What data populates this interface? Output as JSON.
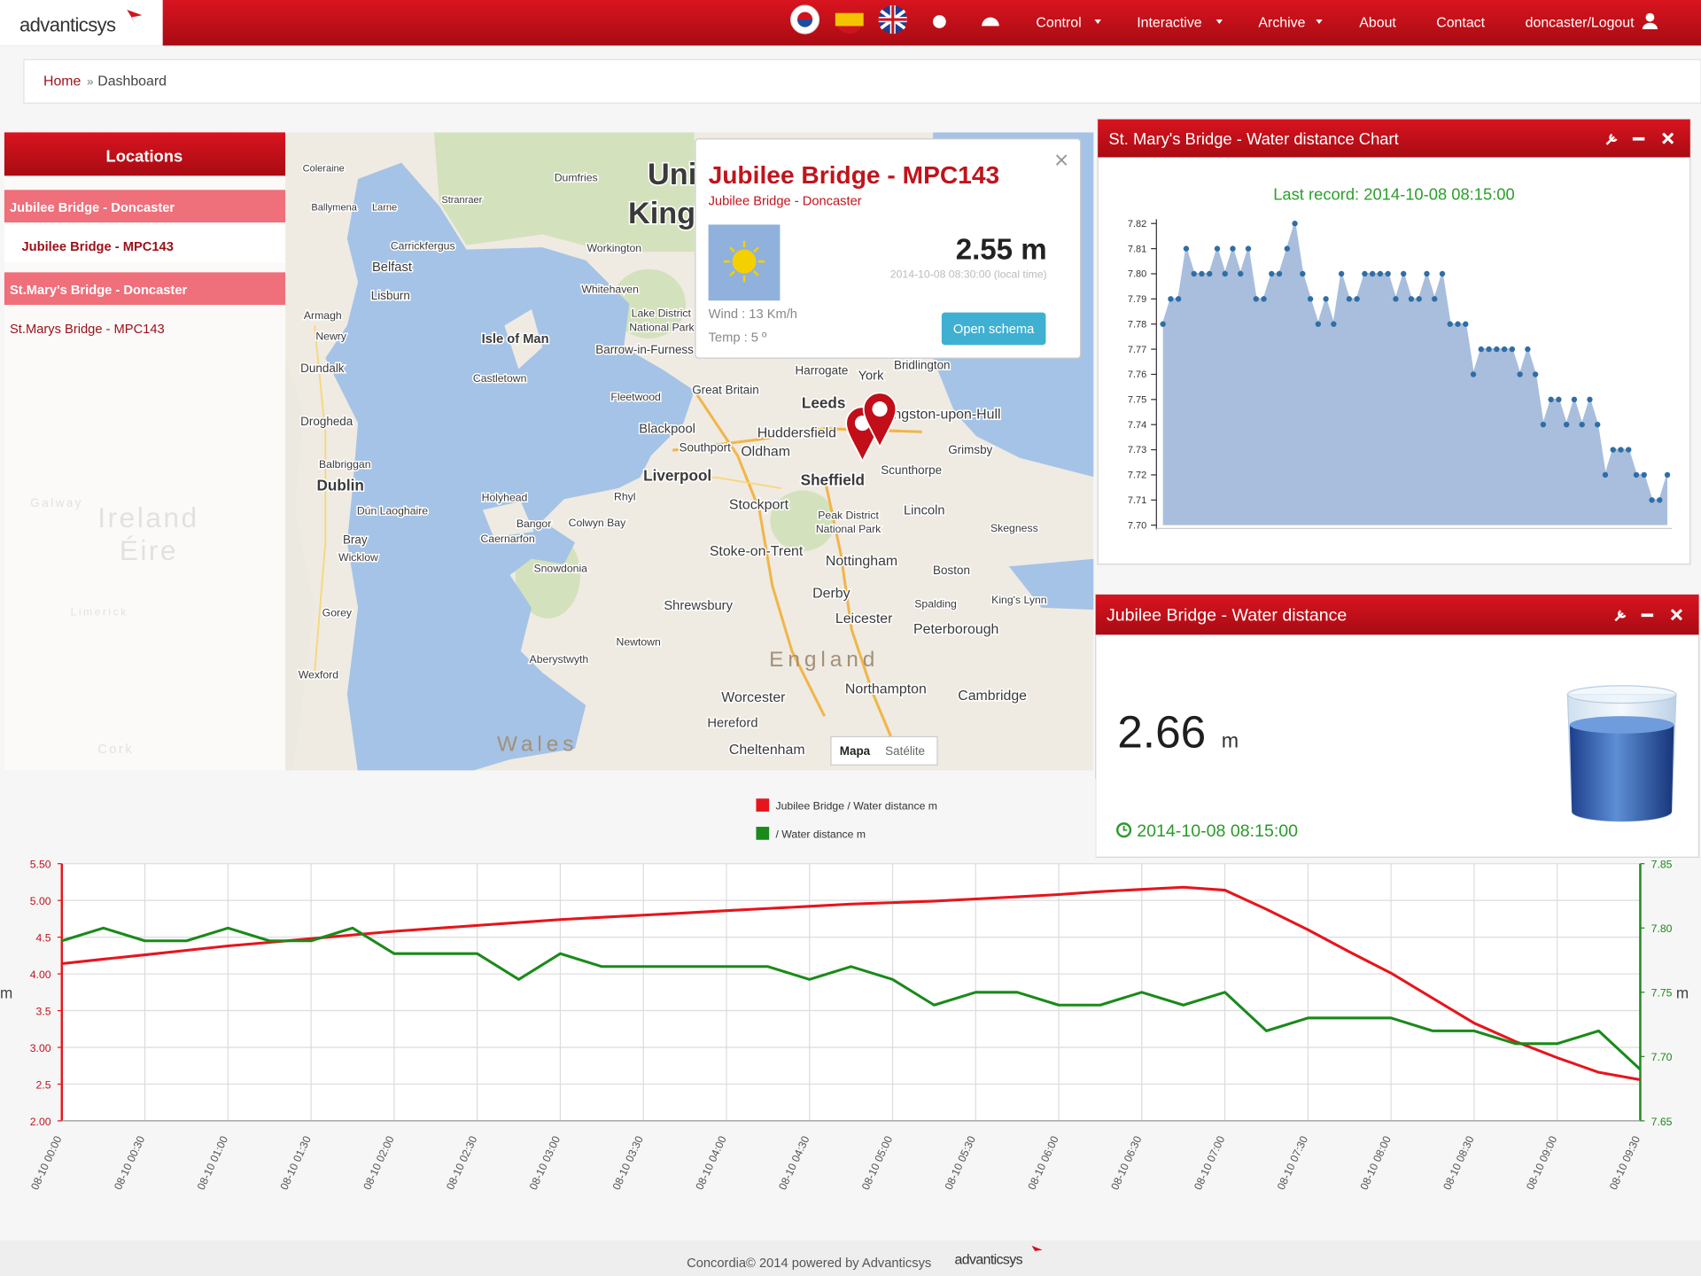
{
  "nav": {
    "logo": "advanticsys",
    "items": [
      "Control",
      "Interactive",
      "Archive",
      "About",
      "Contact",
      "doncaster/Logout"
    ]
  },
  "breadcrumb": {
    "home": "Home",
    "separator": "»",
    "current": "Dashboard"
  },
  "locations": {
    "title": "Locations",
    "items": [
      "Jubilee Bridge - Doncaster",
      "Jubilee Bridge - MPC143",
      "St.Mary's Bridge - Doncaster",
      "St.Marys Bridge - MPC143"
    ]
  },
  "map": {
    "labels": [
      "Coleraine",
      "Ballymena",
      "Larne",
      "Dumfries",
      "United",
      "Kingdom",
      "Stranraer",
      "Carrickfergus",
      "Belfast",
      "Lisburn",
      "Armagh",
      "Newry",
      "Dundalk",
      "Drogheda",
      "Balbriggan",
      "Dublin",
      "Dún Laoghaire",
      "Bray",
      "Wicklow",
      "Gorey",
      "Wexford",
      "Workington",
      "Whitehaven",
      "Isle of Man",
      "Castletown",
      "Barrow-in-Furness",
      "Lake District",
      "National Park",
      "Great Britain",
      "Harrogate",
      "York",
      "Bridlington",
      "Fleetwood",
      "Leeds",
      "Kingston-upon-Hull",
      "Blackpool",
      "Huddersfield",
      "Grimsby",
      "Southport",
      "Oldham",
      "Scunthorpe",
      "Liverpool",
      "Sheffield",
      "Holyhead",
      "Rhyl",
      "Stockport",
      "Lincoln",
      "Peak District",
      "National Park",
      "Bangor",
      "Colwyn Bay",
      "Skegness",
      "Caernarfon",
      "Stoke-on-Trent",
      "Nottingham",
      "Snowdonia",
      "Boston",
      "Derby",
      "Spalding",
      "King's Lynn",
      "Shrewsbury",
      "Leicester",
      "Peterborough",
      "Newtown",
      "England",
      "Aberystwyth",
      "Northampton",
      "Cambridge",
      "Worcester",
      "Hereford",
      "Cheltenham",
      "Wales",
      "Ireland",
      "Éire",
      "Galway",
      "Limerick",
      "Cork"
    ],
    "buttons": [
      "Mapa",
      "Satélite"
    ]
  },
  "popup": {
    "title": "Jubilee Bridge - MPC143",
    "subtitle": "Jubilee Bridge - Doncaster",
    "reading": "2.55 m",
    "time": "2014-10-08 08:30:00 (local time)",
    "wind": "Wind : 13 Km/h",
    "temp": "Temp : 5 º",
    "button": "Open schema"
  },
  "panels": {
    "chart": "St. Mary's Bridge - Water distance Chart",
    "widget": "Jubilee Bridge - Water distance"
  },
  "widget": {
    "value": "2.66",
    "unit": "m",
    "time": "2014-10-08 08:15:00"
  },
  "chart_data": [
    {
      "type": "line",
      "title": "Last record: 2014-10-08 08:15:00",
      "color": "#2f6ea5",
      "fill": "#a9bedc",
      "values": [
        7.78,
        7.79,
        7.79,
        7.81,
        7.8,
        7.8,
        7.8,
        7.81,
        7.8,
        7.81,
        7.8,
        7.81,
        7.79,
        7.79,
        7.8,
        7.8,
        7.81,
        7.82,
        7.8,
        7.79,
        7.78,
        7.79,
        7.78,
        7.8,
        7.79,
        7.79,
        7.8,
        7.8,
        7.8,
        7.8,
        7.79,
        7.8,
        7.79,
        7.79,
        7.8,
        7.79,
        7.8,
        7.78,
        7.78,
        7.78,
        7.76,
        7.77,
        7.77,
        7.77,
        7.77,
        7.77,
        7.76,
        7.77,
        7.76,
        7.74,
        7.75,
        7.75,
        7.74,
        7.75,
        7.74,
        7.75,
        7.74,
        7.72,
        7.73,
        7.73,
        7.73,
        7.72,
        7.72,
        7.71,
        7.71,
        7.72
      ],
      "ylim": [
        7.7,
        7.82
      ],
      "yticks": [
        {
          "value": 7.7,
          "label": "7.70"
        },
        7.71,
        7.72,
        7.73,
        7.74,
        7.75,
        7.76,
        7.77,
        7.78,
        7.79,
        {
          "value": 7.8,
          "label": "7.80"
        },
        7.81,
        7.82
      ]
    },
    {
      "type": "line",
      "categories": [
        "08-10 00:00",
        null,
        "08-10 00:30",
        null,
        "08-10 01:00",
        null,
        "08-10 01:30",
        null,
        "08-10 02:00",
        null,
        "08-10 02:30",
        null,
        "08-10 03:00",
        null,
        "08-10 03:30",
        null,
        "08-10 04:00",
        null,
        "08-10 04:30",
        null,
        "08-10 05:00",
        null,
        "08-10 05:30",
        null,
        "08-10 06:00",
        null,
        "08-10 06:30",
        null,
        "08-10 07:00",
        null,
        "08-10 07:30",
        null,
        "08-10 08:00",
        null,
        "08-10 08:30",
        null,
        "08-10 09:00",
        null,
        "08-10 09:30"
      ],
      "series": [
        {
          "name": "Jubilee Bridge / Water distance m",
          "color": "#e8141c",
          "values": [
            4.14,
            4.2,
            4.26,
            4.32,
            4.38,
            4.43,
            4.48,
            4.53,
            4.58,
            4.62,
            4.66,
            4.7,
            4.74,
            4.77,
            4.8,
            4.83,
            4.86,
            4.89,
            4.92,
            4.95,
            4.97,
            4.99,
            5.02,
            5.05,
            5.08,
            5.12,
            5.15,
            5.18,
            5.14,
            4.88,
            4.6,
            4.3,
            4.01,
            3.67,
            3.33,
            3.08,
            2.86,
            2.66,
            2.56
          ]
        },
        {
          "name": "/ Water distance m",
          "color": "#1a8a1a",
          "axis": "y2",
          "values": [
            7.79,
            7.8,
            7.79,
            7.79,
            7.8,
            7.79,
            7.79,
            7.8,
            7.78,
            7.78,
            7.78,
            7.76,
            7.78,
            7.77,
            7.77,
            7.77,
            7.77,
            7.77,
            7.76,
            7.77,
            7.76,
            7.74,
            7.75,
            7.75,
            7.74,
            7.74,
            7.75,
            7.74,
            7.75,
            7.72,
            7.73,
            7.73,
            7.73,
            7.72,
            7.72,
            7.71,
            7.71,
            7.72,
            7.69
          ]
        }
      ],
      "ylabel": "m",
      "y2label": "m",
      "ylim": [
        2,
        5.5
      ],
      "yticks": [
        {
          "value": 2,
          "label": "2.00"
        },
        2.5,
        {
          "value": 3,
          "label": "3.00"
        },
        3.5,
        {
          "value": 4,
          "label": "4.00"
        },
        4.5,
        {
          "value": 5,
          "label": "5.00"
        },
        {
          "value": 5.5,
          "label": "5.50"
        }
      ],
      "y2lim": [
        7.65,
        7.85
      ],
      "y2ticks": [
        7.65,
        {
          "value": 7.7,
          "label": "7.70"
        },
        7.75,
        {
          "value": 7.8,
          "label": "7.80"
        },
        7.85
      ],
      "grid": true
    }
  ],
  "footer": {
    "text": "Concordia© 2014 powered by Advanticsys",
    "logo": "advanticsys"
  }
}
